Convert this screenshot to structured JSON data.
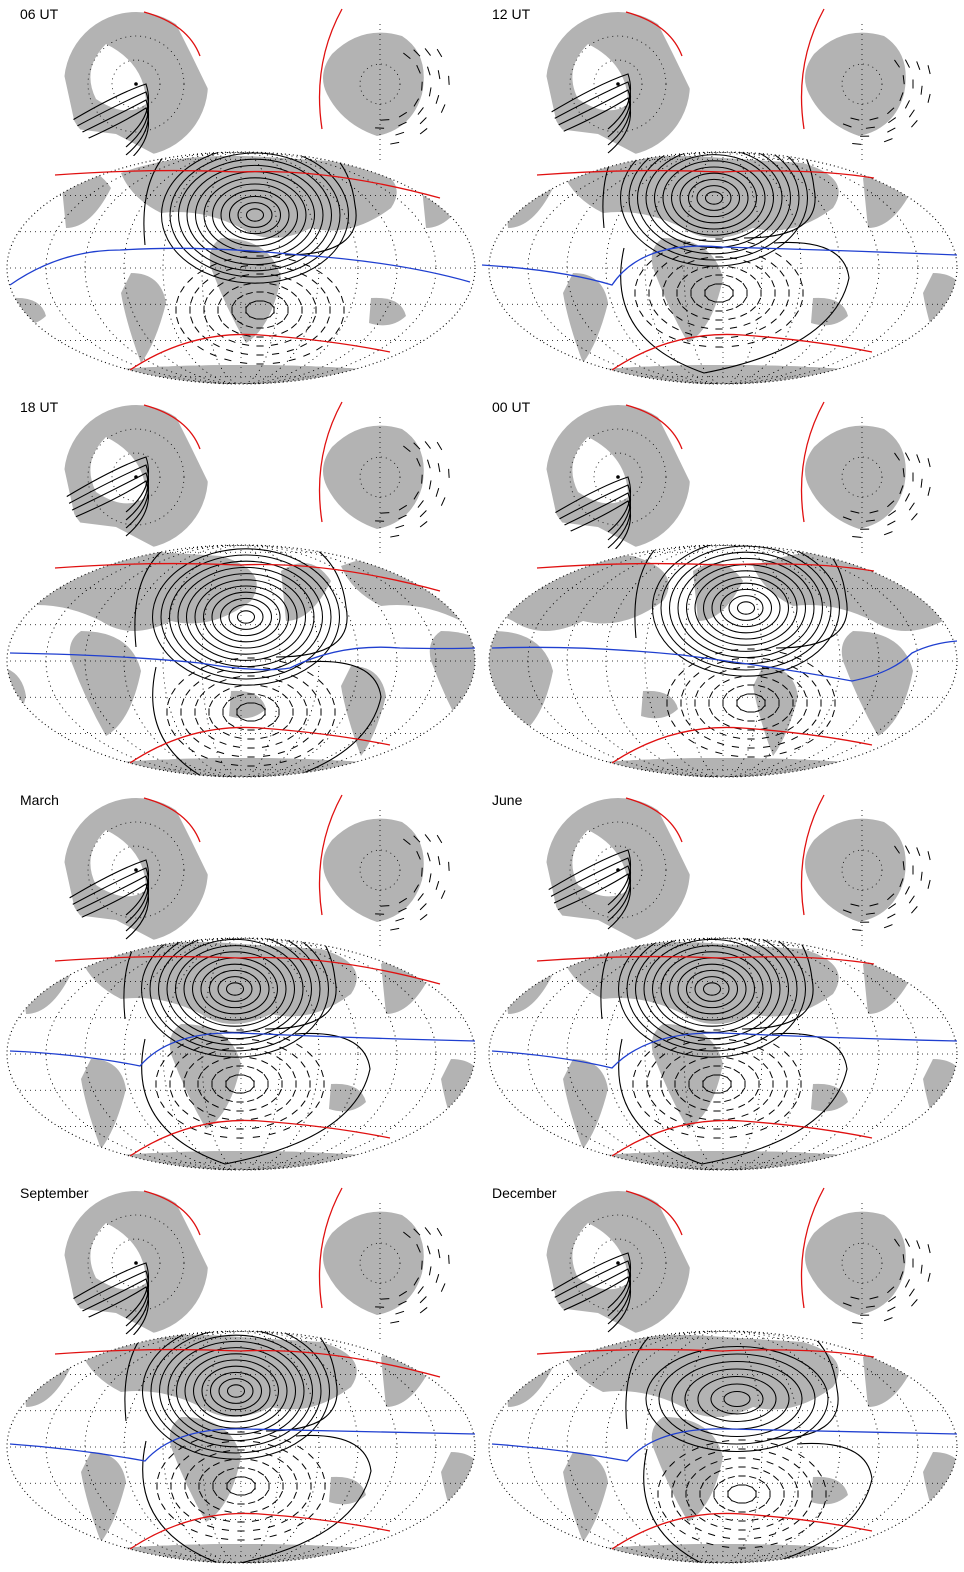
{
  "panels": [
    {
      "label": "06 UT"
    },
    {
      "label": "12 UT"
    },
    {
      "label": "18 UT"
    },
    {
      "label": "00 UT"
    },
    {
      "label": "March"
    },
    {
      "label": "June"
    },
    {
      "label": "September"
    },
    {
      "label": "December"
    }
  ],
  "colors": {
    "land": "#b3b3b3",
    "contour": "#000000",
    "magnetic_equator": "#1f3fd0",
    "auroral_boundary": "#e01010",
    "graticule": "#000000"
  },
  "icons": {
    "north_polar": "north-pole-map-icon",
    "south_polar": "south-pole-map-icon",
    "global": "mollweide-world-map-icon"
  }
}
